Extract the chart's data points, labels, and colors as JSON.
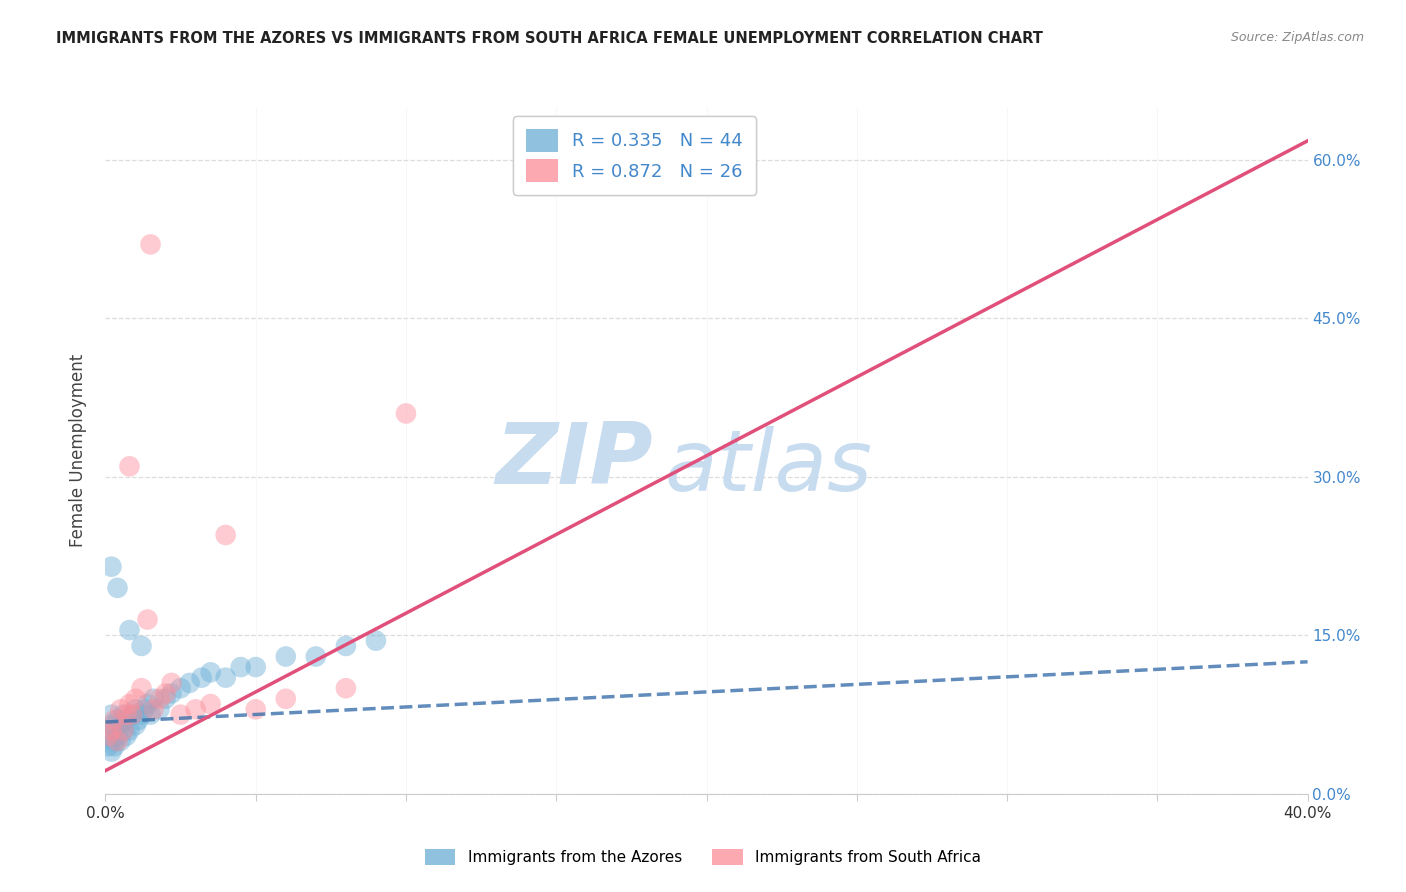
{
  "title": "IMMIGRANTS FROM THE AZORES VS IMMIGRANTS FROM SOUTH AFRICA FEMALE UNEMPLOYMENT CORRELATION CHART",
  "source": "Source: ZipAtlas.com",
  "ylabel": "Female Unemployment",
  "legend_label_1": "Immigrants from the Azores",
  "legend_label_2": "Immigrants from South Africa",
  "R1": 0.335,
  "N1": 44,
  "R2": 0.872,
  "N2": 26,
  "color1": "#6baed6",
  "color2": "#fc8d99",
  "trendline1_color": "#3a6faa",
  "trendline2_color": "#e0507a",
  "axis_label_color": "#4488cc",
  "tick_color": "#333333",
  "xmin": 0.0,
  "xmax": 0.4,
  "ymin": 0.0,
  "ymax": 0.65,
  "yticks": [
    0.0,
    0.15,
    0.3,
    0.45,
    0.6
  ],
  "xtick_values": [
    0.0,
    0.05,
    0.1,
    0.15,
    0.2,
    0.25,
    0.3,
    0.35,
    0.4
  ],
  "scatter1_x": [
    0.001,
    0.001,
    0.002,
    0.002,
    0.002,
    0.003,
    0.003,
    0.003,
    0.004,
    0.004,
    0.005,
    0.005,
    0.006,
    0.006,
    0.007,
    0.007,
    0.008,
    0.009,
    0.01,
    0.01,
    0.011,
    0.012,
    0.013,
    0.014,
    0.015,
    0.016,
    0.018,
    0.02,
    0.022,
    0.025,
    0.028,
    0.032,
    0.035,
    0.04,
    0.045,
    0.05,
    0.06,
    0.07,
    0.08,
    0.09,
    0.002,
    0.004,
    0.008,
    0.012
  ],
  "scatter1_y": [
    0.055,
    0.045,
    0.065,
    0.04,
    0.075,
    0.05,
    0.06,
    0.045,
    0.055,
    0.07,
    0.05,
    0.065,
    0.06,
    0.075,
    0.055,
    0.07,
    0.06,
    0.075,
    0.065,
    0.08,
    0.07,
    0.075,
    0.08,
    0.085,
    0.075,
    0.09,
    0.08,
    0.09,
    0.095,
    0.1,
    0.105,
    0.11,
    0.115,
    0.11,
    0.12,
    0.12,
    0.13,
    0.13,
    0.14,
    0.145,
    0.215,
    0.195,
    0.155,
    0.14
  ],
  "scatter2_x": [
    0.001,
    0.002,
    0.003,
    0.004,
    0.005,
    0.006,
    0.007,
    0.008,
    0.009,
    0.01,
    0.012,
    0.014,
    0.016,
    0.018,
    0.02,
    0.022,
    0.025,
    0.03,
    0.035,
    0.04,
    0.05,
    0.06,
    0.08,
    0.1,
    0.008,
    0.015
  ],
  "scatter2_y": [
    0.055,
    0.06,
    0.07,
    0.05,
    0.08,
    0.06,
    0.075,
    0.085,
    0.075,
    0.09,
    0.1,
    0.165,
    0.08,
    0.09,
    0.095,
    0.105,
    0.075,
    0.08,
    0.085,
    0.245,
    0.08,
    0.09,
    0.1,
    0.36,
    0.31,
    0.52
  ],
  "trendline1_x": [
    0.0,
    0.4
  ],
  "trendline1_y": [
    0.068,
    0.125
  ],
  "trendline2_x": [
    0.0,
    0.4
  ],
  "trendline2_y": [
    0.022,
    0.618
  ],
  "watermark_zip": "ZIP",
  "watermark_atlas": "atlas",
  "watermark_color": "#c8dcf0",
  "background_color": "#ffffff",
  "grid_color": "#dddddd"
}
